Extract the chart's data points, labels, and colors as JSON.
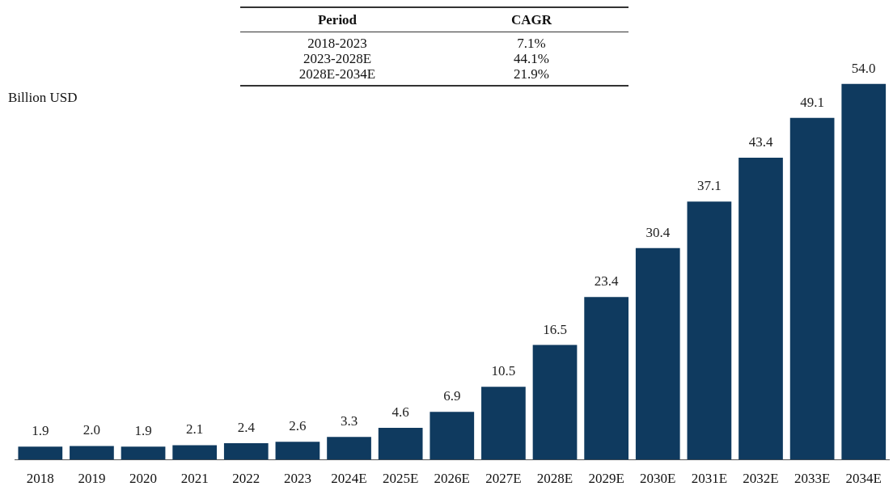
{
  "chart_data": {
    "type": "bar",
    "ylabel": "Billion USD",
    "categories": [
      "2018",
      "2019",
      "2020",
      "2021",
      "2022",
      "2023",
      "2024E",
      "2025E",
      "2026E",
      "2027E",
      "2028E",
      "2029E",
      "2030E",
      "2031E",
      "2032E",
      "2033E",
      "2034E"
    ],
    "values": [
      1.9,
      2.0,
      1.9,
      2.1,
      2.4,
      2.6,
      3.3,
      4.6,
      6.9,
      10.5,
      16.5,
      23.4,
      30.4,
      37.1,
      43.4,
      49.1,
      54.0
    ],
    "color": "#0f3a5f",
    "relative": false,
    "value_labels": [
      "1.9",
      "2.0",
      "1.9",
      "2.1",
      "2.4",
      "2.6",
      "3.3",
      "4.6",
      "6.9",
      "10.5",
      "16.5",
      "23.4",
      "30.4",
      "37.1",
      "43.4",
      "49.1",
      "54.0"
    ],
    "grid": false,
    "legend": false,
    "annotations": [
      "Period",
      "CAGR",
      "2018-2023",
      "7.1%",
      "2023-2028E",
      "44.1%",
      "2028E-2034E",
      "21.9%"
    ]
  }
}
